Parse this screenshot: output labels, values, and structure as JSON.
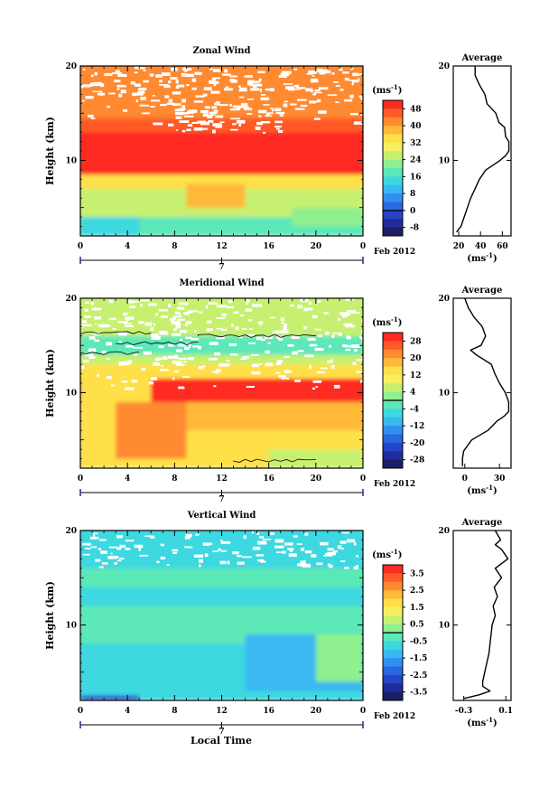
{
  "figure": {
    "date_label": "Feb 2012",
    "day_label": "7",
    "xlabel": "Local Time",
    "ylabel": "Height (km)",
    "unit_base": "(ms",
    "unit_sup": "-1",
    "unit_close": ")",
    "avg_title": "Average"
  },
  "chart_data": [
    {
      "type": "heatmap",
      "title": "Zonal Wind",
      "xlabel": "Local Time",
      "ylabel": "Height (km)",
      "x_ticks": [
        "0",
        "4",
        "8",
        "12",
        "16",
        "20",
        "0"
      ],
      "xlim": [
        0,
        24
      ],
      "y_ticks": [
        "20",
        "10"
      ],
      "ylim": [
        2,
        20
      ],
      "colorbar": {
        "unit": "(ms-1)",
        "levels": [
          "48",
          "40",
          "32",
          "24",
          "16",
          "8",
          "0",
          "-8"
        ],
        "colors": [
          "#ff2a20",
          "#ff5a28",
          "#ff8a30",
          "#ffb838",
          "#ffe04a",
          "#f5f060",
          "#c8f070",
          "#8ef08e",
          "#5de8b8",
          "#3cd8e0",
          "#3ab8f0",
          "#3090f0",
          "#2a68e0",
          "#2545c8",
          "#1f2c9a",
          "#1a1f66"
        ]
      },
      "profile": {
        "title": "Average",
        "x_ticks": [
          "20",
          "40",
          "60"
        ],
        "xlim": [
          15,
          68
        ],
        "xlabel": "(ms-1)",
        "height_km": [
          2.4,
          3,
          4,
          5,
          6,
          7,
          8,
          9,
          9.6,
          10,
          10.5,
          11,
          12,
          12.5,
          13.5,
          14,
          15,
          16,
          17,
          18,
          19,
          20
        ],
        "value": [
          18,
          22,
          25,
          28,
          31,
          35,
          39,
          45,
          53,
          58,
          63,
          66,
          66,
          63,
          62,
          57,
          54,
          46,
          44,
          39,
          35,
          35
        ]
      }
    },
    {
      "type": "heatmap",
      "title": "Meridional Wind",
      "xlabel": "Local Time",
      "ylabel": "Height (km)",
      "x_ticks": [
        "0",
        "4",
        "8",
        "12",
        "16",
        "20",
        "0"
      ],
      "xlim": [
        0,
        24
      ],
      "y_ticks": [
        "20",
        "10"
      ],
      "ylim": [
        2,
        20
      ],
      "colorbar": {
        "unit": "(ms-1)",
        "levels": [
          "28",
          "20",
          "12",
          "4",
          "-4",
          "-12",
          "-20",
          "-28"
        ],
        "colors": [
          "#ff2a20",
          "#ff5a28",
          "#ff8a30",
          "#ffb838",
          "#ffe04a",
          "#f5f060",
          "#c8f070",
          "#8ef08e",
          "#5de8b8",
          "#3cd8e0",
          "#3ab8f0",
          "#3090f0",
          "#2a68e0",
          "#2545c8",
          "#1f2c9a",
          "#1a1f66"
        ]
      },
      "profile": {
        "title": "Average",
        "x_ticks": [
          "0",
          "30"
        ],
        "xlim": [
          -10,
          40
        ],
        "xlabel": "(ms-1)",
        "height_km": [
          2.2,
          3,
          3.8,
          4.5,
          5,
          6,
          7,
          7.5,
          8,
          9,
          10,
          11,
          12,
          13,
          14,
          14.5,
          15,
          16,
          17,
          18,
          19,
          20
        ],
        "value": [
          -2,
          -2,
          -1,
          3,
          6,
          20,
          28,
          34,
          38,
          38,
          35,
          30,
          26,
          23,
          10,
          5,
          14,
          18,
          15,
          8,
          3,
          0
        ]
      }
    },
    {
      "type": "heatmap",
      "title": "Vertical Wind",
      "xlabel": "Local Time",
      "ylabel": "Height (km)",
      "x_ticks": [
        "0",
        "4",
        "8",
        "12",
        "16",
        "20",
        "0"
      ],
      "xlim": [
        0,
        24
      ],
      "y_ticks": [
        "20",
        "10"
      ],
      "ylim": [
        2,
        20
      ],
      "colorbar": {
        "unit": "(ms-1)",
        "levels": [
          "3.5",
          "2.5",
          "1.5",
          "0.5",
          "-0.5",
          "-1.5",
          "-2.5",
          "-3.5"
        ],
        "colors": [
          "#ff2a20",
          "#ff5a28",
          "#ff8a30",
          "#ffb838",
          "#ffe04a",
          "#f5f060",
          "#c8f070",
          "#8ef08e",
          "#5de8b8",
          "#3cd8e0",
          "#3ab8f0",
          "#3090f0",
          "#2a68e0",
          "#2545c8",
          "#1f2c9a",
          "#1a1f66"
        ]
      },
      "profile": {
        "title": "Average",
        "x_ticks": [
          "-0.3",
          "0.1"
        ],
        "xlim": [
          -0.4,
          0.15
        ],
        "xlabel": "(ms-1)",
        "height_km": [
          2.2,
          2.6,
          3,
          3.5,
          4,
          5,
          6,
          7,
          8,
          9,
          10,
          11,
          12,
          13,
          14,
          15,
          16,
          17,
          18,
          18.5,
          19,
          20
        ],
        "value": [
          -0.3,
          -0.15,
          -0.05,
          -0.12,
          -0.12,
          -0.1,
          -0.08,
          -0.06,
          -0.05,
          -0.04,
          -0.03,
          0.0,
          -0.02,
          0.02,
          -0.01,
          0.06,
          0.0,
          0.12,
          0.06,
          0.0,
          0.05,
          0.0
        ]
      }
    }
  ]
}
